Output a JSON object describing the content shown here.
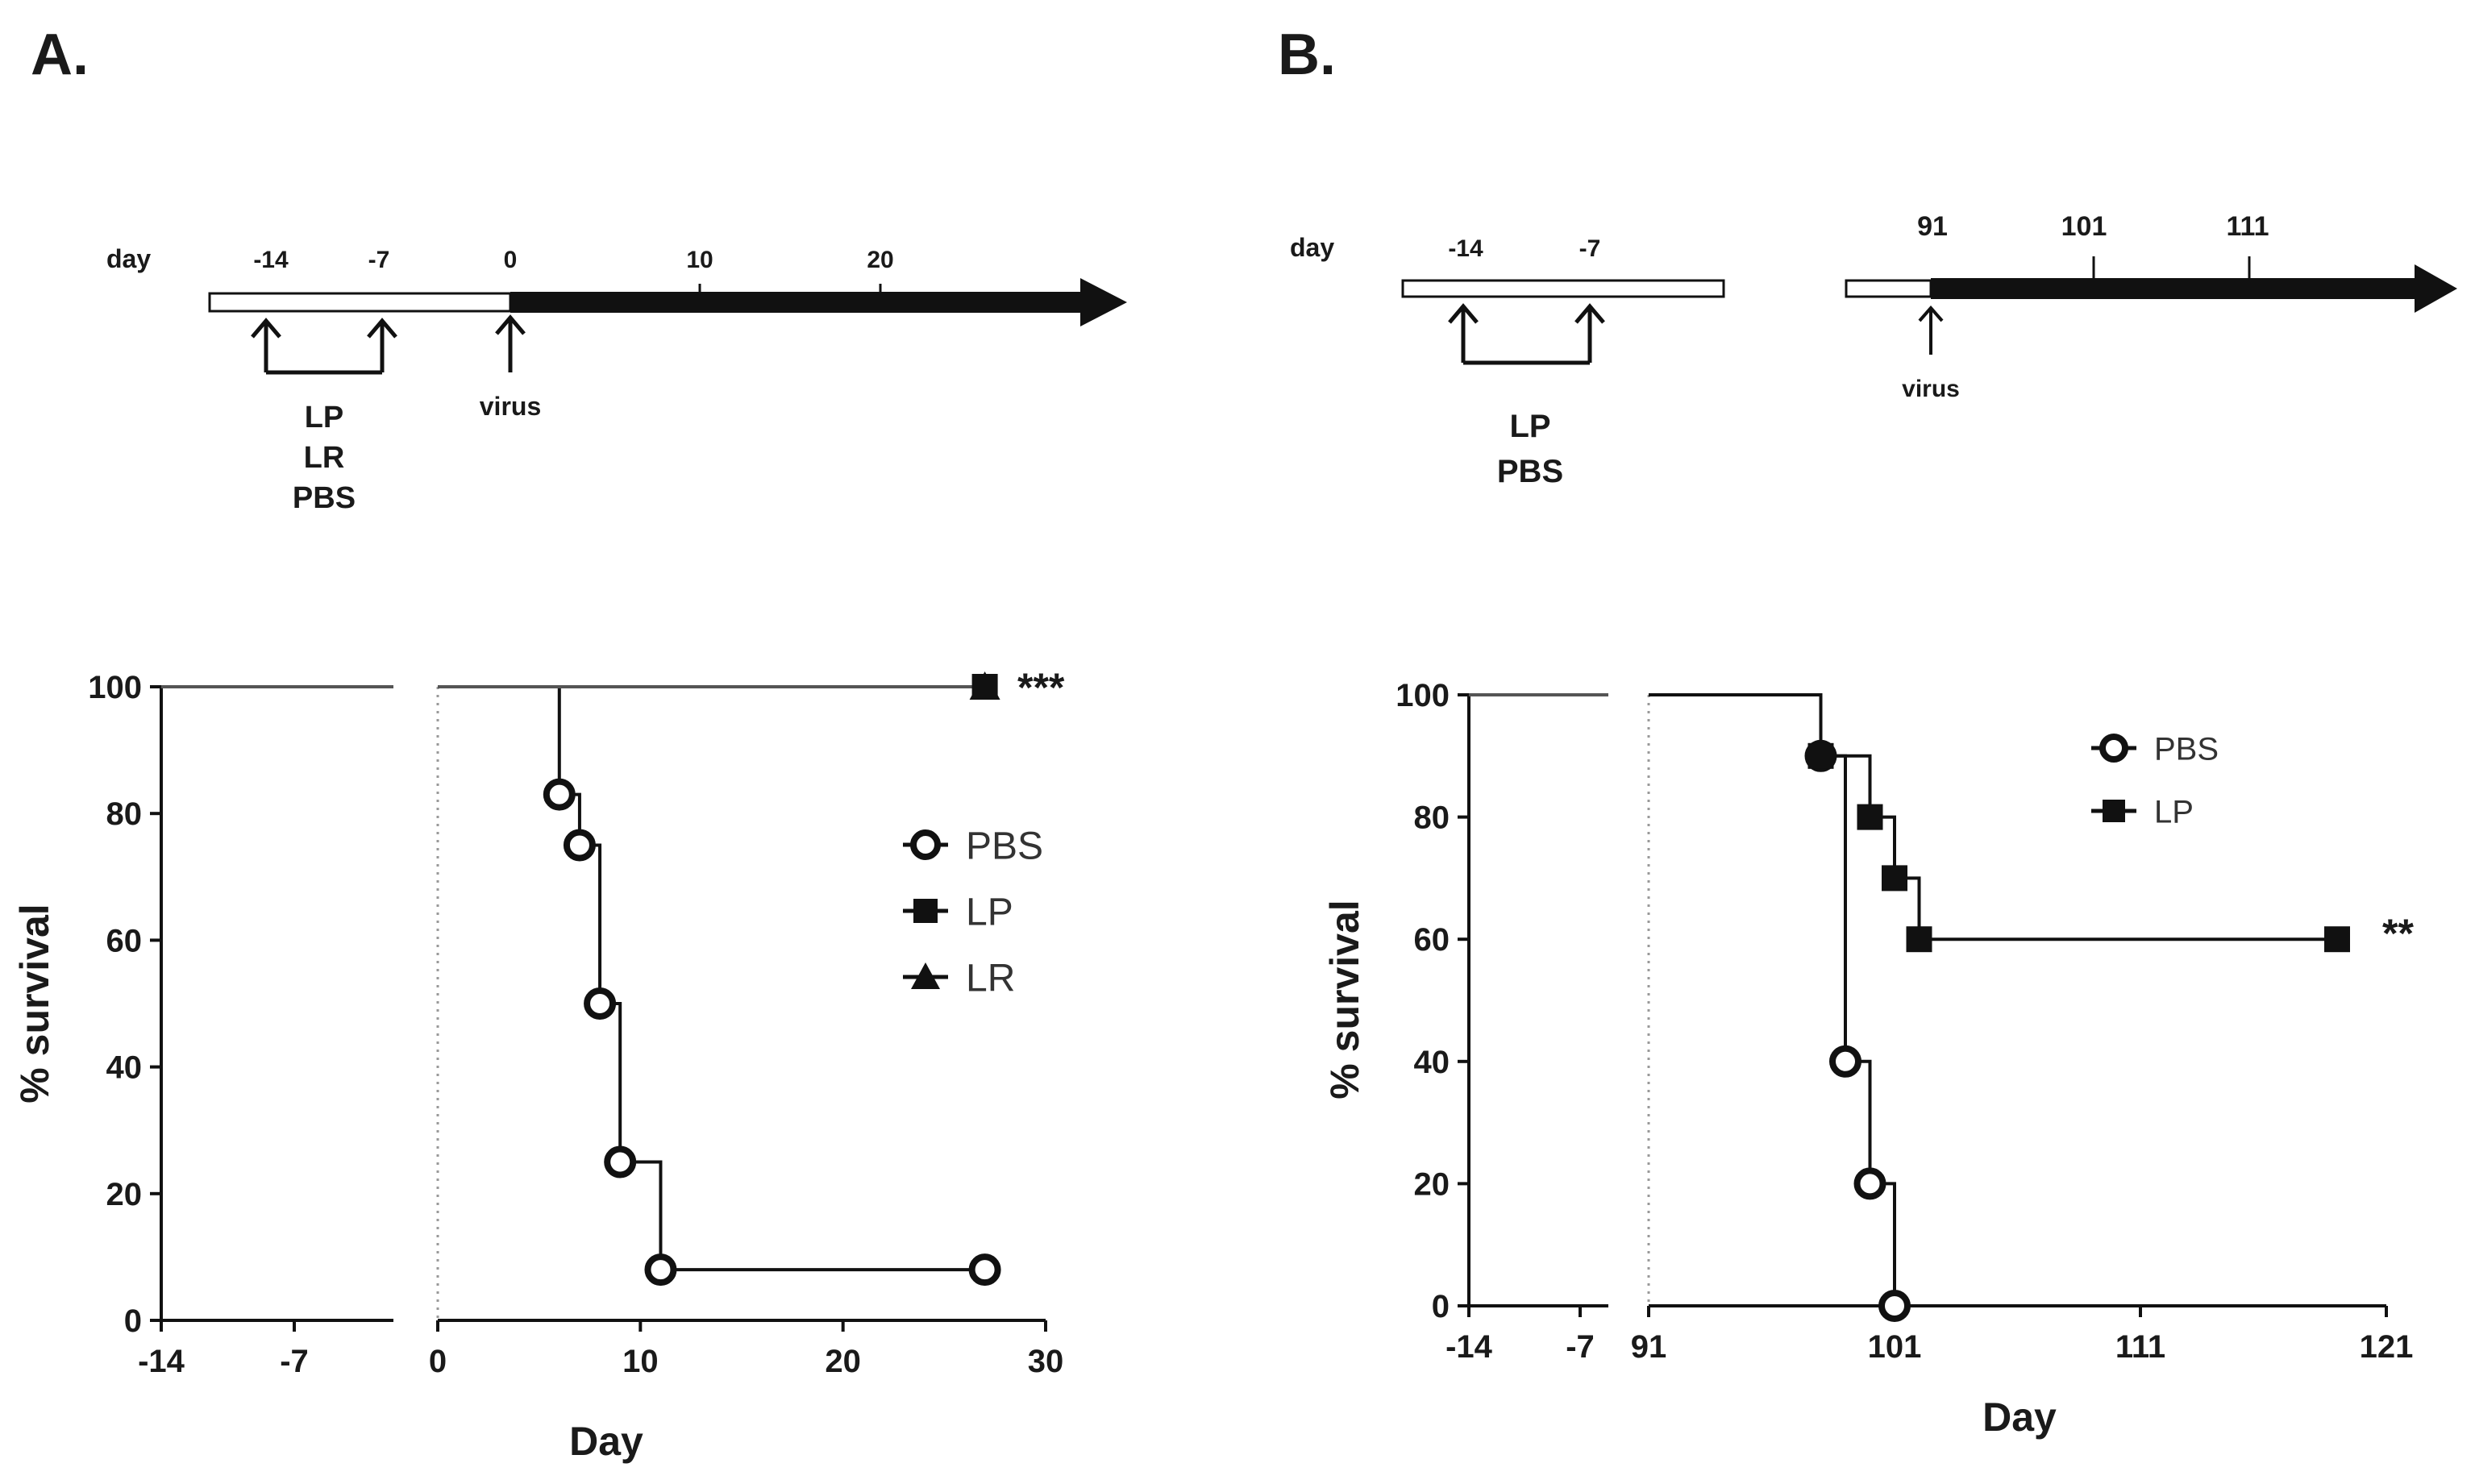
{
  "panels": {
    "a": {
      "label": "A."
    },
    "b": {
      "label": "B."
    }
  },
  "timelines": {
    "a": {
      "day_label": "day",
      "ticks": [
        "-14",
        "-7",
        "0",
        "10",
        "20"
      ],
      "treatments": [
        "LP",
        "LR",
        "PBS"
      ],
      "virus_label": "virus"
    },
    "b": {
      "day_label": "day",
      "ticks": [
        "-14",
        "-7",
        "91",
        "101",
        "111"
      ],
      "treatments": [
        "LP",
        "PBS"
      ],
      "virus_label": "virus"
    }
  },
  "chart_data": [
    {
      "type": "line",
      "panel": "A",
      "title": "",
      "xlabel": "Day",
      "ylabel": "% survival",
      "ylim": [
        0,
        100
      ],
      "yticks": [
        "0",
        "20",
        "40",
        "60",
        "80",
        "100"
      ],
      "xticks_left": [
        "-14",
        "-7"
      ],
      "xticks_right": [
        "0",
        "10",
        "20",
        "30"
      ],
      "xlim_right": [
        0,
        30
      ],
      "legend": [
        "PBS",
        "LP",
        "LR"
      ],
      "significance": "***",
      "series": [
        {
          "name": "PBS",
          "marker": "open-circle",
          "x": [
            6,
            7,
            8,
            9,
            11,
            27
          ],
          "y": [
            83,
            75,
            50,
            25,
            8,
            8
          ]
        },
        {
          "name": "LP",
          "marker": "filled-square",
          "x": [
            27
          ],
          "y": [
            100
          ]
        },
        {
          "name": "LR",
          "marker": "filled-triangle",
          "x": [
            27
          ],
          "y": [
            100
          ]
        }
      ]
    },
    {
      "type": "line",
      "panel": "B",
      "title": "",
      "xlabel": "Day",
      "ylabel": "% survival",
      "ylim": [
        0,
        100
      ],
      "yticks": [
        "0",
        "20",
        "40",
        "60",
        "80",
        "100"
      ],
      "xticks_left": [
        "-14",
        "-7"
      ],
      "xticks_right": [
        "91",
        "101",
        "111",
        "121"
      ],
      "xlim_right": [
        91,
        121
      ],
      "legend": [
        "PBS",
        "LP"
      ],
      "significance": "**",
      "series": [
        {
          "name": "PBS",
          "marker": "open-circle",
          "x": [
            98,
            99,
            100,
            101
          ],
          "y": [
            90,
            40,
            20,
            0
          ]
        },
        {
          "name": "LP",
          "marker": "filled-square",
          "x": [
            98,
            100,
            101,
            102,
            119
          ],
          "y": [
            90,
            80,
            70,
            60,
            60
          ]
        }
      ]
    }
  ]
}
